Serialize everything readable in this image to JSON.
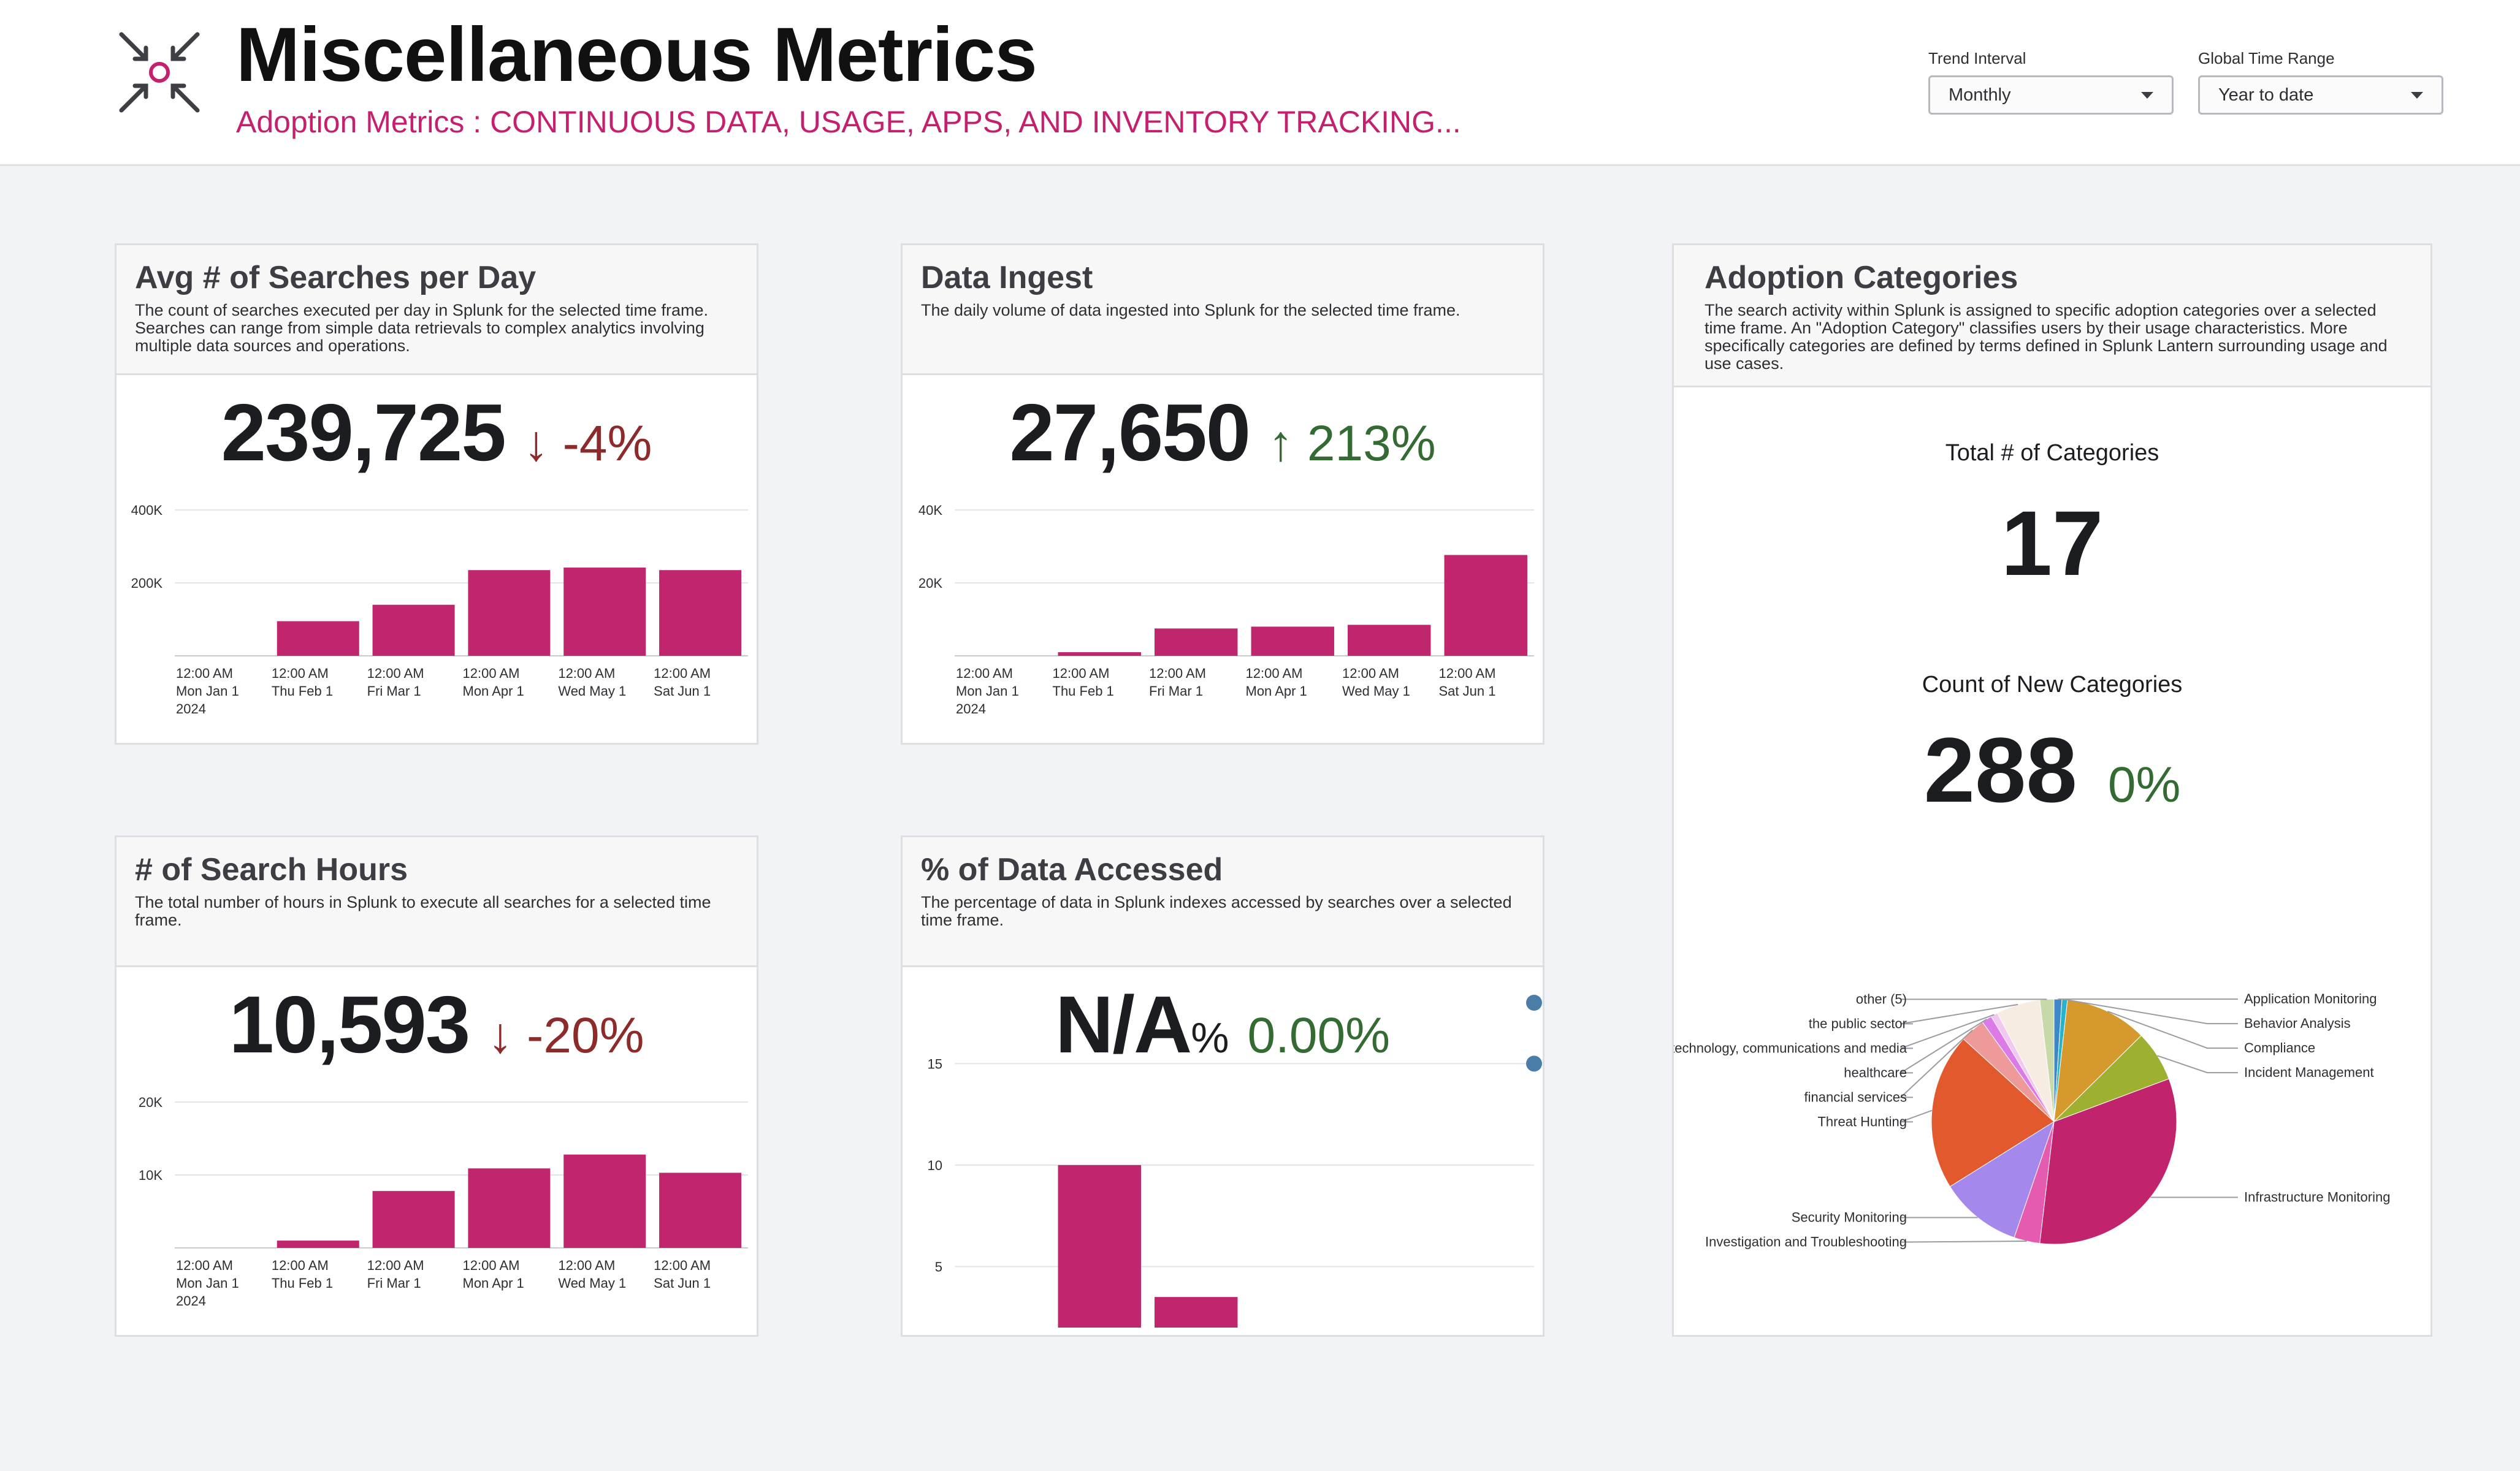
{
  "header": {
    "title": "Miscellaneous Metrics",
    "subtitle": "Adoption Metrics : CONTINUOUS DATA, USAGE, APPS, AND INVENTORY TRACKING...",
    "accent_color": "#c4206e",
    "logo_icon": "arrows-converging-target-icon",
    "filters": [
      {
        "label": "Trend Interval",
        "value": "Monthly"
      },
      {
        "label": "Global Time Range",
        "value": "Year to date"
      }
    ]
  },
  "panels": {
    "searches": {
      "title": "Avg # of Searches per Day",
      "description": "The count of searches executed per day in Splunk for the selected time frame. Searches can range from simple data retrievals to complex analytics involving multiple data sources and operations.",
      "value": "239,725",
      "trend": "-4%",
      "trend_arrow": "↓"
    },
    "ingest": {
      "title": "Data Ingest",
      "description": "The daily volume of data ingested into Splunk for the selected time frame.",
      "value": "27,650",
      "trend": "213%",
      "trend_arrow": "↑"
    },
    "hours": {
      "title": "# of Search Hours",
      "description": "The total number of hours in Splunk to execute all searches for a selected time frame.",
      "value": "10,593",
      "trend": "-20%",
      "trend_arrow": "↓"
    },
    "accessed": {
      "title": "% of Data Accessed",
      "description": "The percentage of data in Splunk indexes accessed by searches over a selected time frame.",
      "value": "N/A",
      "unit": "%",
      "trend": "0.00%"
    },
    "categories": {
      "title": "Adoption Categories",
      "description": "The search activity within Splunk is assigned to specific adoption categories over a selected time frame. An \"Adoption Category\" classifies users by their usage characteristics. More specifically categories are defined by terms defined in Splunk Lantern surrounding usage and use cases.",
      "total_label": "Total # of Categories",
      "total_value": "17",
      "new_label": "Count of New Categories",
      "new_value": "288",
      "new_trend": "0%"
    }
  },
  "chart_data": [
    {
      "id": "searches",
      "type": "bar",
      "x_labels": [
        [
          "12:00 AM",
          "Mon Jan 1",
          "2024"
        ],
        [
          "12:00 AM",
          "Thu Feb 1"
        ],
        [
          "12:00 AM",
          "Fri Mar 1"
        ],
        [
          "12:00 AM",
          "Mon Apr 1"
        ],
        [
          "12:00 AM",
          "Wed May 1"
        ],
        [
          "12:00 AM",
          "Sat Jun 1"
        ]
      ],
      "values": [
        0,
        95000,
        140000,
        235000,
        242000,
        235000
      ],
      "ylim": [
        0,
        400000
      ],
      "yticks": [
        {
          "v": 200000,
          "label": "200K"
        },
        {
          "v": 400000,
          "label": "400K"
        }
      ],
      "color": "#c0266e"
    },
    {
      "id": "ingest",
      "type": "bar",
      "x_labels": [
        [
          "12:00 AM",
          "Mon Jan 1",
          "2024"
        ],
        [
          "12:00 AM",
          "Thu Feb 1"
        ],
        [
          "12:00 AM",
          "Fri Mar 1"
        ],
        [
          "12:00 AM",
          "Mon Apr 1"
        ],
        [
          "12:00 AM",
          "Wed May 1"
        ],
        [
          "12:00 AM",
          "Sat Jun 1"
        ]
      ],
      "values": [
        0,
        1000,
        7500,
        8000,
        8500,
        27650
      ],
      "ylim": [
        0,
        40000
      ],
      "yticks": [
        {
          "v": 20000,
          "label": "20K"
        },
        {
          "v": 40000,
          "label": "40K"
        }
      ],
      "color": "#c0266e"
    },
    {
      "id": "hours",
      "type": "bar",
      "x_labels": [
        [
          "12:00 AM",
          "Mon Jan 1",
          "2024"
        ],
        [
          "12:00 AM",
          "Thu Feb 1"
        ],
        [
          "12:00 AM",
          "Fri Mar 1"
        ],
        [
          "12:00 AM",
          "Mon Apr 1"
        ],
        [
          "12:00 AM",
          "Wed May 1"
        ],
        [
          "12:00 AM",
          "Sat Jun 1"
        ]
      ],
      "values": [
        0,
        1000,
        7800,
        10900,
        12800,
        10300
      ],
      "ylim": [
        0,
        20000
      ],
      "yticks": [
        {
          "v": 10000,
          "label": "10K"
        },
        {
          "v": 20000,
          "label": "20K"
        }
      ],
      "color": "#c0266e"
    },
    {
      "id": "accessed",
      "type": "bar",
      "x_labels": [
        [
          "12:00 AM",
          "Mon Jan 1",
          "2024"
        ],
        [
          "12:00 AM",
          "Thu Feb 1"
        ],
        [
          "12:00 AM",
          "Fri Mar 1"
        ],
        [
          "12:00 AM",
          "Mon Apr 1"
        ],
        [
          "12:00 AM",
          "Wed May 1"
        ],
        [
          "12:00 AM",
          "Sat Jun 1"
        ]
      ],
      "values": [
        0,
        10,
        3.5,
        0,
        0,
        0
      ],
      "ylim": [
        0,
        18
      ],
      "yticks": [
        {
          "v": 5,
          "label": "5"
        },
        {
          "v": 10,
          "label": "10"
        },
        {
          "v": 15,
          "label": "15"
        }
      ],
      "color": "#c0266e",
      "markers": [
        {
          "y": 15,
          "color": "#4a7ea8"
        },
        {
          "y": 18,
          "color": "#4a7ea8"
        }
      ]
    },
    {
      "id": "categories",
      "type": "pie",
      "slices": [
        {
          "label": "Application Monitoring",
          "value": 1.0,
          "color": "#3a88c8"
        },
        {
          "label": "Behavior Analysis",
          "value": 0.7,
          "color": "#27b3c9"
        },
        {
          "label": "Compliance",
          "value": 10.5,
          "color": "#d6992d"
        },
        {
          "label": "Incident Management",
          "value": 6.5,
          "color": "#9eb02f"
        },
        {
          "label": "Infrastructure Monitoring",
          "value": 31.5,
          "color": "#c1246d"
        },
        {
          "label": "Investigation and Troubleshooting",
          "value": 3.3,
          "color": "#e45bb0"
        },
        {
          "label": "Security Monitoring",
          "value": 10.5,
          "color": "#a588ec"
        },
        {
          "label": "Threat Hunting",
          "value": 20.0,
          "color": "#e3592e"
        },
        {
          "label": "financial services",
          "value": 3.2,
          "color": "#ee9a9a"
        },
        {
          "label": "healthcare",
          "value": 1.3,
          "color": "#dc7ae8"
        },
        {
          "label": "technology, communications and media",
          "value": 0.9,
          "color": "#f0c8f0"
        },
        {
          "label": "the public sector",
          "value": 5.6,
          "color": "#f7ece2"
        },
        {
          "label": "other (5)",
          "value": 1.8,
          "color": "#c7d9a8"
        }
      ]
    }
  ]
}
